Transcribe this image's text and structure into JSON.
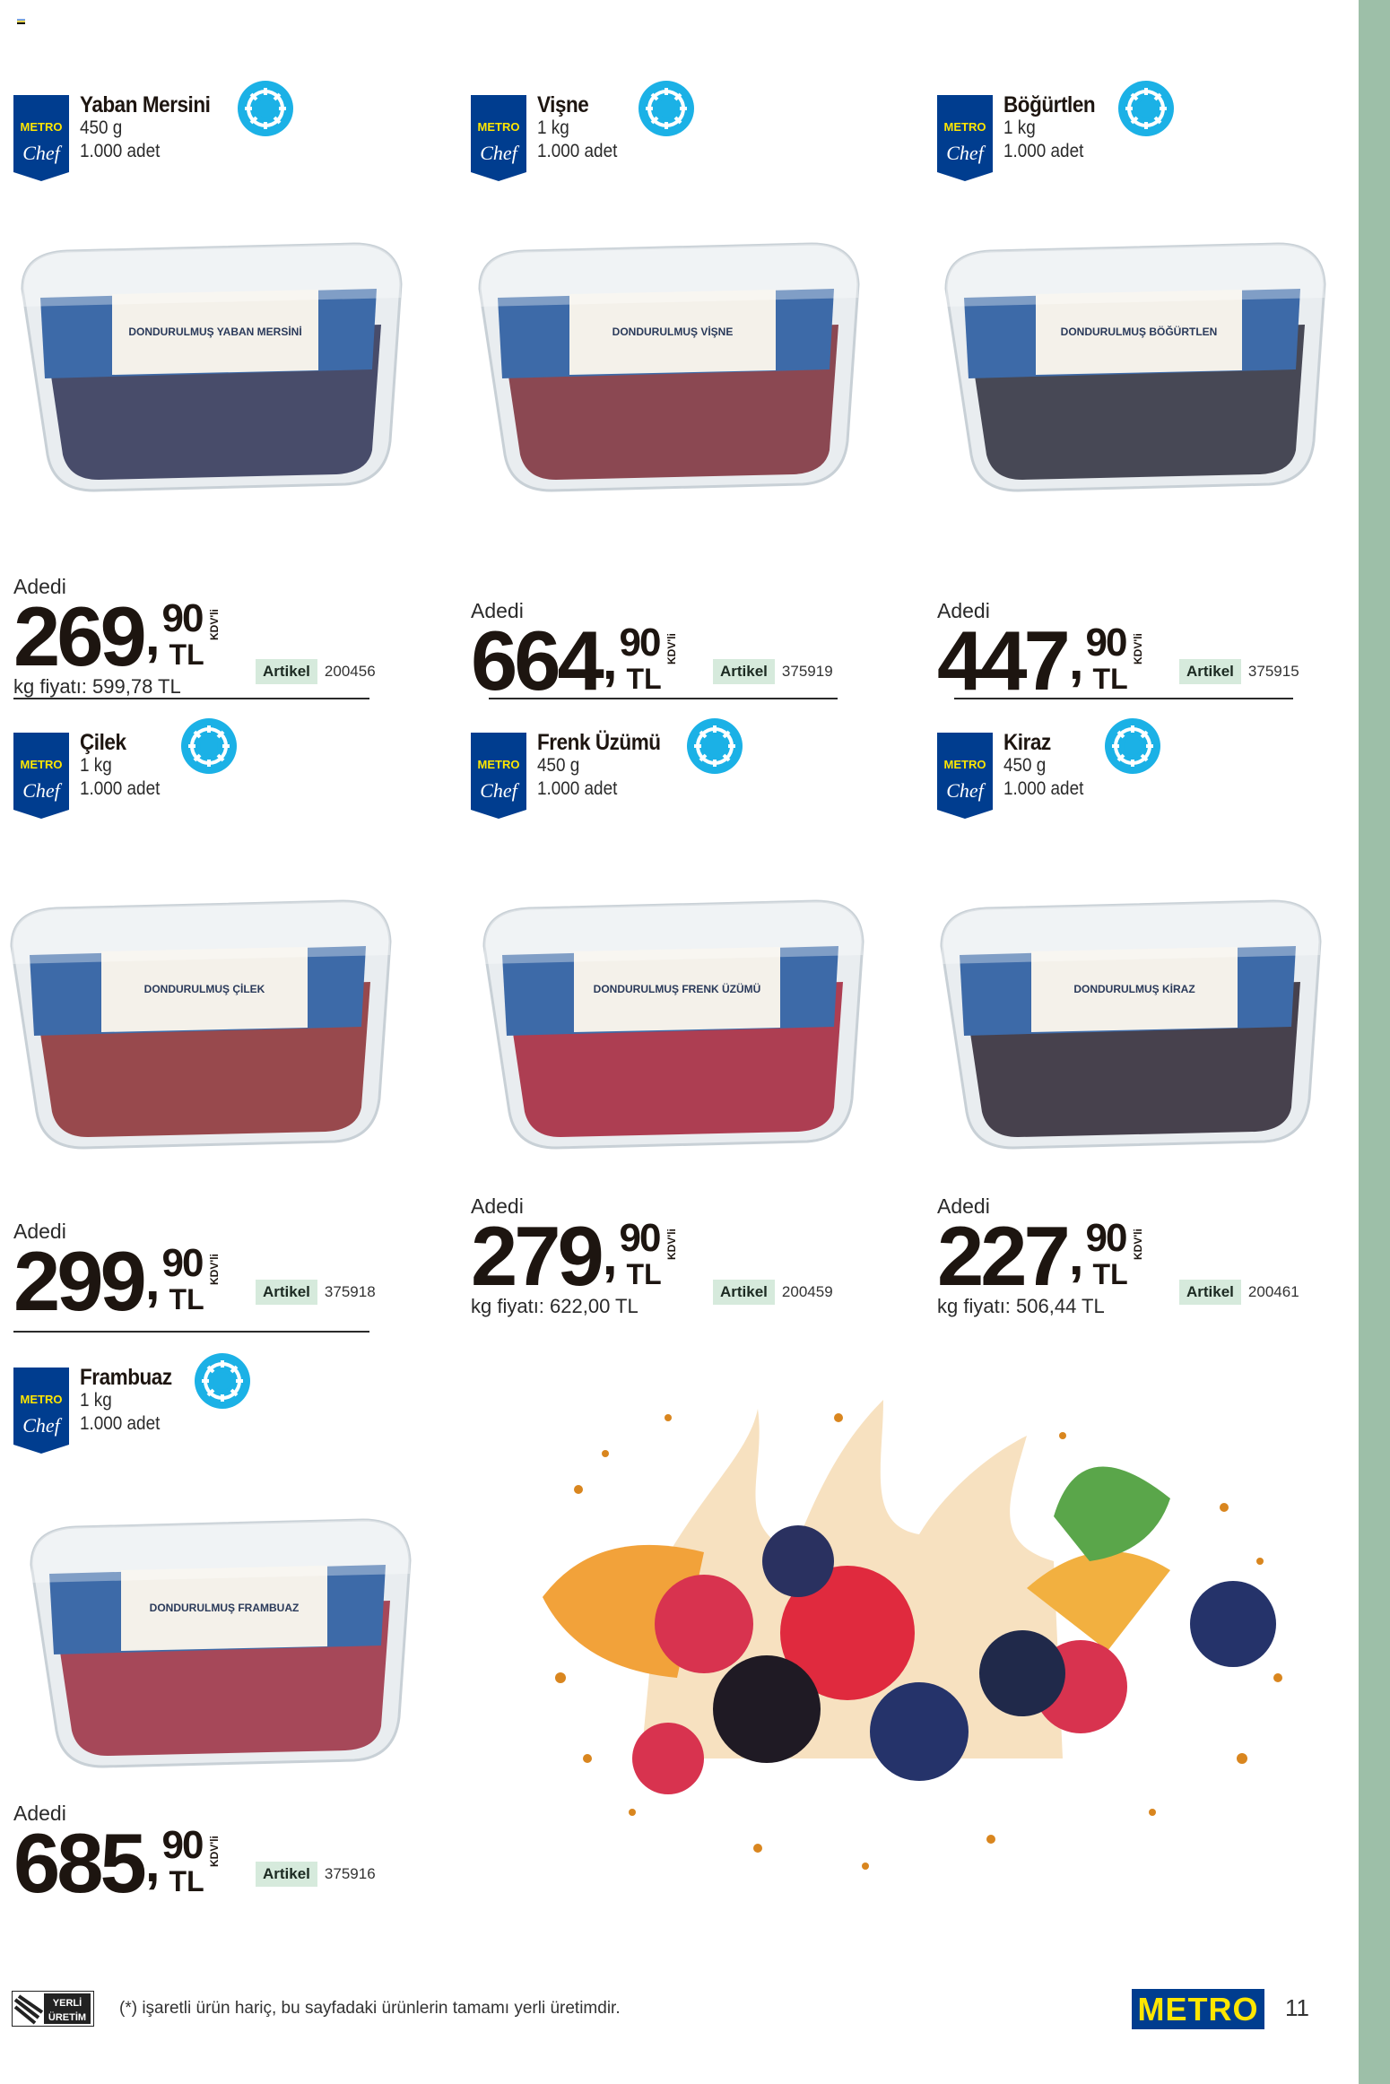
{
  "colors": {
    "metro_blue": "#003d8f",
    "metro_yellow": "#ffe600",
    "frozen_icon": "#1bb1e6",
    "artikel_bg": "#d6eadc",
    "side_strip": "#9dbfa8"
  },
  "brand": {
    "badge_top": "METRO",
    "badge_bottom": "Chef"
  },
  "labels": {
    "adedi": "Adedi",
    "artikel": "Artikel",
    "kdv": "KDV'li",
    "currency": "TL"
  },
  "products": [
    {
      "name": "Yaban Mersini",
      "weight": "450 g",
      "pack": "1.000 adet",
      "whole": "269",
      "dec": "90",
      "kg_price": "kg fiyatı: 599,78 TL",
      "artikel": "200456",
      "icon": "snowflake-frozen-icon",
      "color": "#2b2f52",
      "label": "DONDURULMUŞ YABAN MERSİNİ"
    },
    {
      "name": "Vişne",
      "weight": "1 kg",
      "pack": "1.000 adet",
      "whole": "664",
      "dec": "90",
      "kg_price": "",
      "artikel": "375919",
      "icon": "snowflake-frozen-icon",
      "color": "#7a2a36",
      "label": "DONDURULMUŞ VİŞNE"
    },
    {
      "name": "Böğürtlen",
      "weight": "1 kg",
      "pack": "1.000 adet",
      "whole": "447",
      "dec": "90",
      "kg_price": "",
      "artikel": "375915",
      "icon": "snowflake-frozen-icon",
      "color": "#2a2a3a",
      "label": "DONDURULMUŞ BÖĞÜRTLEN"
    },
    {
      "name": "Çilek",
      "weight": "1 kg",
      "pack": "1.000 adet",
      "whole": "299",
      "dec": "90",
      "kg_price": "",
      "artikel": "375918",
      "icon": "snowflake-frozen-icon",
      "color": "#8a2c30",
      "label": "DONDURULMUŞ ÇİLEK"
    },
    {
      "name": "Frenk Üzümü",
      "weight": "450 g",
      "pack": "1.000 adet",
      "whole": "279",
      "dec": "90",
      "kg_price": "kg fiyatı: 622,00 TL",
      "artikel": "200459",
      "icon": "snowflake-frozen-icon",
      "color": "#a21e36",
      "label": "DONDURULMUŞ FRENK ÜZÜMÜ"
    },
    {
      "name": "Kiraz",
      "weight": "450 g",
      "pack": "1.000 adet",
      "whole": "227",
      "dec": "90",
      "kg_price": "kg fiyatı: 506,44 TL",
      "artikel": "200461",
      "icon": "snowflake-frozen-icon",
      "color": "#2a2230",
      "label": "DONDURULMUŞ KİRAZ"
    },
    {
      "name": "Frambuaz",
      "weight": "1 kg",
      "pack": "1.000 adet",
      "whole": "685",
      "dec": "90",
      "kg_price": "",
      "artikel": "375916",
      "icon": "snowflake-frozen-icon",
      "color": "#9a2a3e",
      "label": "DONDURULMUŞ FRAMBUAZ"
    }
  ],
  "footer": {
    "yerli_logo": "YERLİ ÜRETİM",
    "note": "(*) işaretli ürün hariç, bu sayfadaki ürünlerin tamamı yerli üretimdir.",
    "metro_logo": "METRO",
    "page": "11"
  }
}
